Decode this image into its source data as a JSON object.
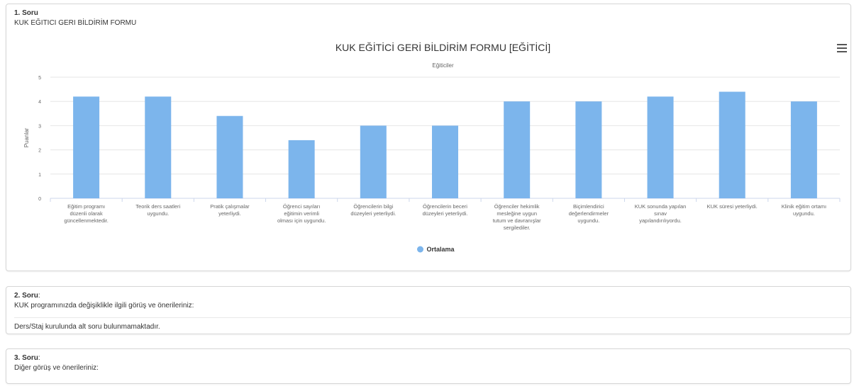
{
  "questions": [
    {
      "number": "1. Soru",
      "text": "KUK EĞITICI GERI BİLDİRİM FORMU"
    },
    {
      "number": "2. Soru",
      "suffix": ":",
      "text": "KUK programınızda değişiklikle ilgili görüş ve önerileriniz:",
      "note": "Ders/Staj kurulunda alt soru bulunmamaktadır."
    },
    {
      "number": "3. Soru",
      "suffix": ":",
      "text": "Diğer görüş ve önerileriniz:"
    }
  ],
  "chart_menu_icon": "hamburger-menu-icon",
  "chart_data": {
    "type": "bar",
    "title": "KUK EĞİTİCİ GERİ BİLDİRİM FORMU [EĞİTİCİ]",
    "subtitle": "Eğiticiler",
    "ylabel": "Puanlar",
    "xlabel": "",
    "ylim": [
      0,
      5
    ],
    "yticks": [
      "0",
      "1",
      "2",
      "3",
      "4",
      "5"
    ],
    "grid": true,
    "legend_position": "bottom",
    "bar_color": "#7cb5ec",
    "categories": [
      [
        "Eğitim programı",
        "düzenli olarak",
        "güncellenmektedir."
      ],
      [
        "Teorik ders saatleri",
        "uygundu."
      ],
      [
        "Pratik çalışmalar",
        "yeterliydi."
      ],
      [
        "Öğrenci sayıları",
        "eğitimin verimli",
        "olması için uygundu."
      ],
      [
        "Öğrencilerin bilgi",
        "düzeyleri yeterliydi."
      ],
      [
        "Öğrencilerin beceri",
        "düzeyleri yeterliydi."
      ],
      [
        "Öğrenciler hekimlik",
        "mesleğine uygun",
        "tutum ve davranışlar",
        "sergilediler."
      ],
      [
        "Biçimlendirici",
        "değerlendirmeler",
        "uygundu."
      ],
      [
        "KUK sonunda yapılan",
        "sınav",
        "yapılandırılıyordu."
      ],
      [
        "KUK süresi yeterliydi."
      ],
      [
        "Klinik eğitim ortamı",
        "uygundu."
      ]
    ],
    "series": [
      {
        "name": "Ortalama",
        "values": [
          4.2,
          4.2,
          3.4,
          2.4,
          3.0,
          3.0,
          4.0,
          4.0,
          4.2,
          4.4,
          4.0
        ]
      }
    ]
  }
}
